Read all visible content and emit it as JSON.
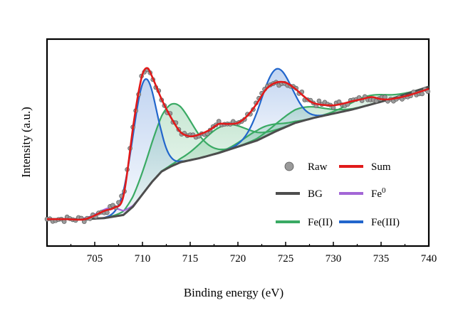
{
  "chart_data": {
    "type": "line",
    "title": "",
    "xlabel": "Binding energy (eV)",
    "ylabel": "Intensity (a.u.)",
    "xlim": [
      700,
      740
    ],
    "ylim": [
      0,
      100
    ],
    "x_ticks": [
      705,
      710,
      715,
      720,
      725,
      730,
      735,
      740
    ],
    "x_tick_labels": [
      "705",
      "710",
      "715",
      "720",
      "725",
      "730",
      "735",
      "740"
    ],
    "y_ticks_visible": false,
    "grid": false,
    "legend_position": "bottom-right, inside plot",
    "legend": [
      {
        "name": "Raw",
        "style": "gray-circle-marker"
      },
      {
        "name": "Sum",
        "style": "red-line"
      },
      {
        "name": "BG",
        "style": "dark-gray-line"
      },
      {
        "name": "Fe",
        "superscript": "0",
        "style": "purple-line"
      },
      {
        "name": "Fe(II)",
        "style": "green-line"
      },
      {
        "name": "Fe(III)",
        "style": "blue-line"
      }
    ],
    "series": [
      {
        "name": "BG",
        "color": "#4d4d4d",
        "x": [
          700,
          702,
          704,
          706,
          708,
          709,
          710,
          711,
          712,
          713,
          714,
          716,
          718,
          720,
          722,
          724,
          726,
          728,
          730,
          732,
          734,
          736,
          738,
          740
        ],
        "y": [
          13,
          13,
          13,
          13.5,
          15,
          19,
          25,
          31,
          36,
          38.5,
          40.5,
          42.5,
          45,
          48,
          51,
          55.5,
          59.5,
          62,
          64,
          66,
          68.5,
          71,
          74,
          77
        ]
      },
      {
        "name": "Fe0",
        "color": "#a366d6",
        "components": [
          {
            "center": 706.5,
            "height": 4.5,
            "width": 1.2
          }
        ]
      },
      {
        "name": "Fe(II)",
        "color": "#3aaa64",
        "components": [
          {
            "center": 713.0,
            "height": 30,
            "width": 2.1
          },
          {
            "center": 718.5,
            "height": 12.5,
            "width": 2.3
          },
          {
            "center": 722.5,
            "height": 5,
            "width": 1.8
          },
          {
            "center": 726.5,
            "height": 6.5,
            "width": 2.3
          },
          {
            "center": 733.5,
            "height": 4.5,
            "width": 2.0
          }
        ]
      },
      {
        "name": "Fe(III)",
        "color": "#2266cc",
        "components": [
          {
            "center": 710.2,
            "height": 54,
            "width": 1.25
          },
          {
            "center": 724.0,
            "height": 30,
            "width": 1.6
          }
        ]
      },
      {
        "name": "Sum",
        "color": "#e11a1a",
        "x": [
          700,
          702,
          704,
          706,
          707,
          708,
          709,
          709.5,
          710,
          710.5,
          711,
          712,
          713,
          714,
          715,
          716,
          717,
          718,
          719,
          720,
          721,
          722,
          723,
          724,
          725,
          726,
          727,
          728,
          730,
          732,
          733,
          734,
          735,
          736,
          738,
          740
        ],
        "y": [
          13,
          13,
          13,
          17,
          18.5,
          24,
          57,
          72,
          83,
          86,
          82,
          71,
          62,
          55,
          53,
          54,
          56,
          59,
          59,
          59.5,
          63,
          69,
          76,
          79,
          79,
          76,
          72,
          69,
          68,
          70,
          71,
          72,
          71,
          71,
          73,
          76
        ]
      }
    ],
    "raw_points": {
      "color": "#9a9a9a",
      "x_step": 0.3,
      "noise_amplitude": 1.4
    }
  }
}
